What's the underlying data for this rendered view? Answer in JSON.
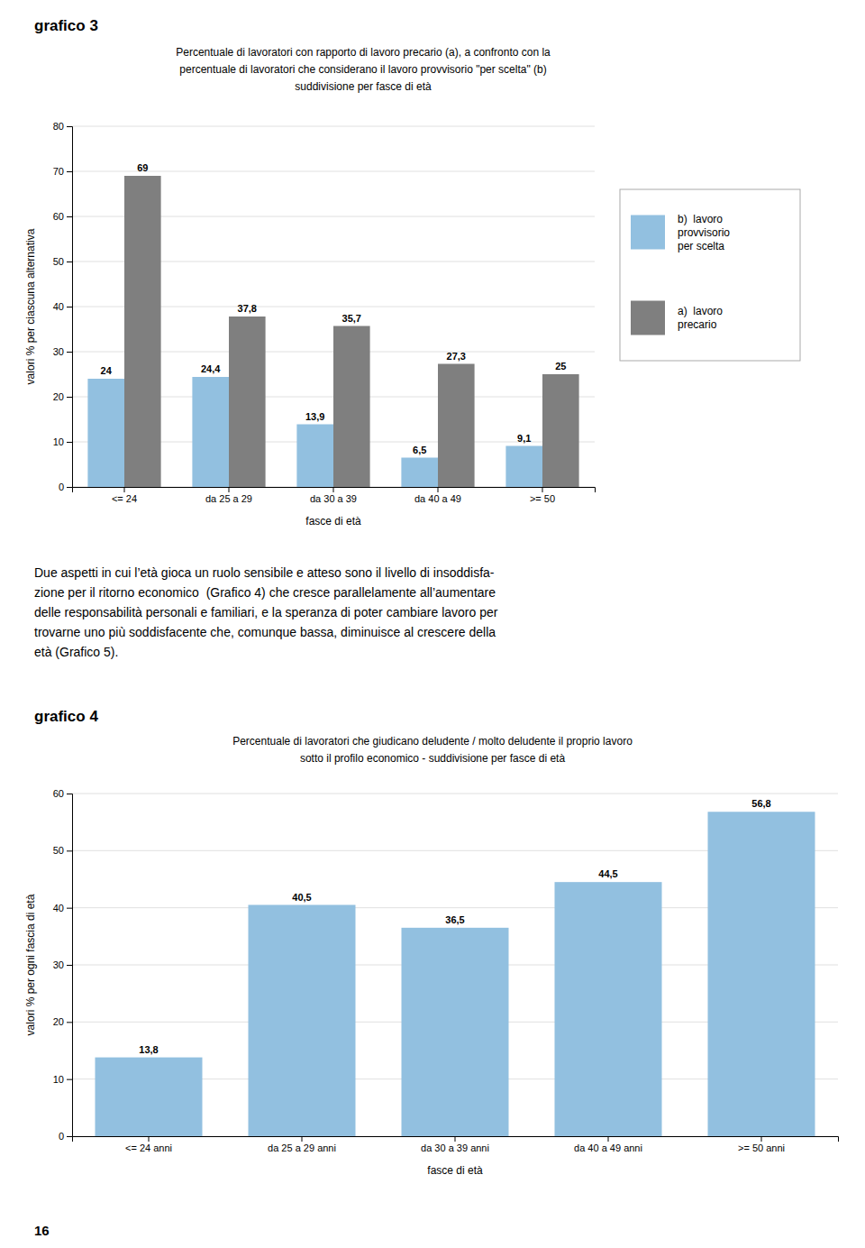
{
  "chart_data": [
    {
      "type": "bar",
      "label": "grafico 3",
      "title": "Percentuale di lavoratori con rapporto di lavoro precario (a), a confronto con la\npercentuale di lavoratori che considerano il lavoro provvisorio \"per scelta\" (b)\nsuddivisione per fasce di età",
      "x_label": "fasce di età",
      "y_label": "valori % per ciascuna alternativa",
      "categories": [
        "<= 24",
        "da 25 a 29",
        "da 30 a 39",
        "da 40 a 49",
        ">= 50"
      ],
      "series": [
        {
          "name": "b)  lavoro\nprovvisorio\nper scelta",
          "color": "#92c0e0",
          "values": [
            24,
            24.4,
            13.9,
            6.5,
            9.1
          ],
          "value_labels": [
            "24",
            "24,4",
            "13,9",
            "6,5",
            "9,1"
          ]
        },
        {
          "name": "a)  lavoro\nprecario",
          "color": "#7f7f7f",
          "values": [
            69,
            37.8,
            35.7,
            27.3,
            25
          ],
          "value_labels": [
            "69",
            "37,8",
            "35,7",
            "27,3",
            "25"
          ]
        }
      ],
      "ylim": [
        0,
        80
      ],
      "yticks": [
        0,
        10,
        20,
        30,
        40,
        50,
        60,
        70,
        80
      ],
      "grid": true,
      "legend": "right",
      "data_labels": true
    },
    {
      "type": "bar",
      "label": "grafico 4",
      "title": "Percentuale di lavoratori che giudicano deludente / molto deludente il proprio lavoro\nsotto il profilo economico - suddivisione per fasce di età",
      "x_label": "fasce di età",
      "y_label": "valori % per ogni fascia di età",
      "categories": [
        "<= 24 anni",
        "da 25 a 29 anni",
        "da 30 a 39 anni",
        "da 40 a 49 anni",
        ">= 50 anni"
      ],
      "values": [
        13.8,
        40.5,
        36.5,
        44.5,
        56.8
      ],
      "value_labels": [
        "13,8",
        "40,5",
        "36,5",
        "44,5",
        "56,8"
      ],
      "color": "#92c0e0",
      "ylim": [
        0,
        60
      ],
      "yticks": [
        0,
        10,
        20,
        30,
        40,
        50,
        60
      ],
      "grid": true,
      "data_labels": true
    }
  ],
  "text": "Due aspetti in cui l’età gioca un ruolo sensibile e atteso sono il livello di insoddisfa-\nzione per il ritorno economico  (Grafico 4) che cresce parallelamente all’aumentare\ndelle responsabilità personali e familiari, e la speranza di poter cambiare lavoro per\ntrovarne uno più soddisfacente che, comunque bassa, diminuisce al crescere della\netà (Grafico 5).",
  "page_number": "16"
}
